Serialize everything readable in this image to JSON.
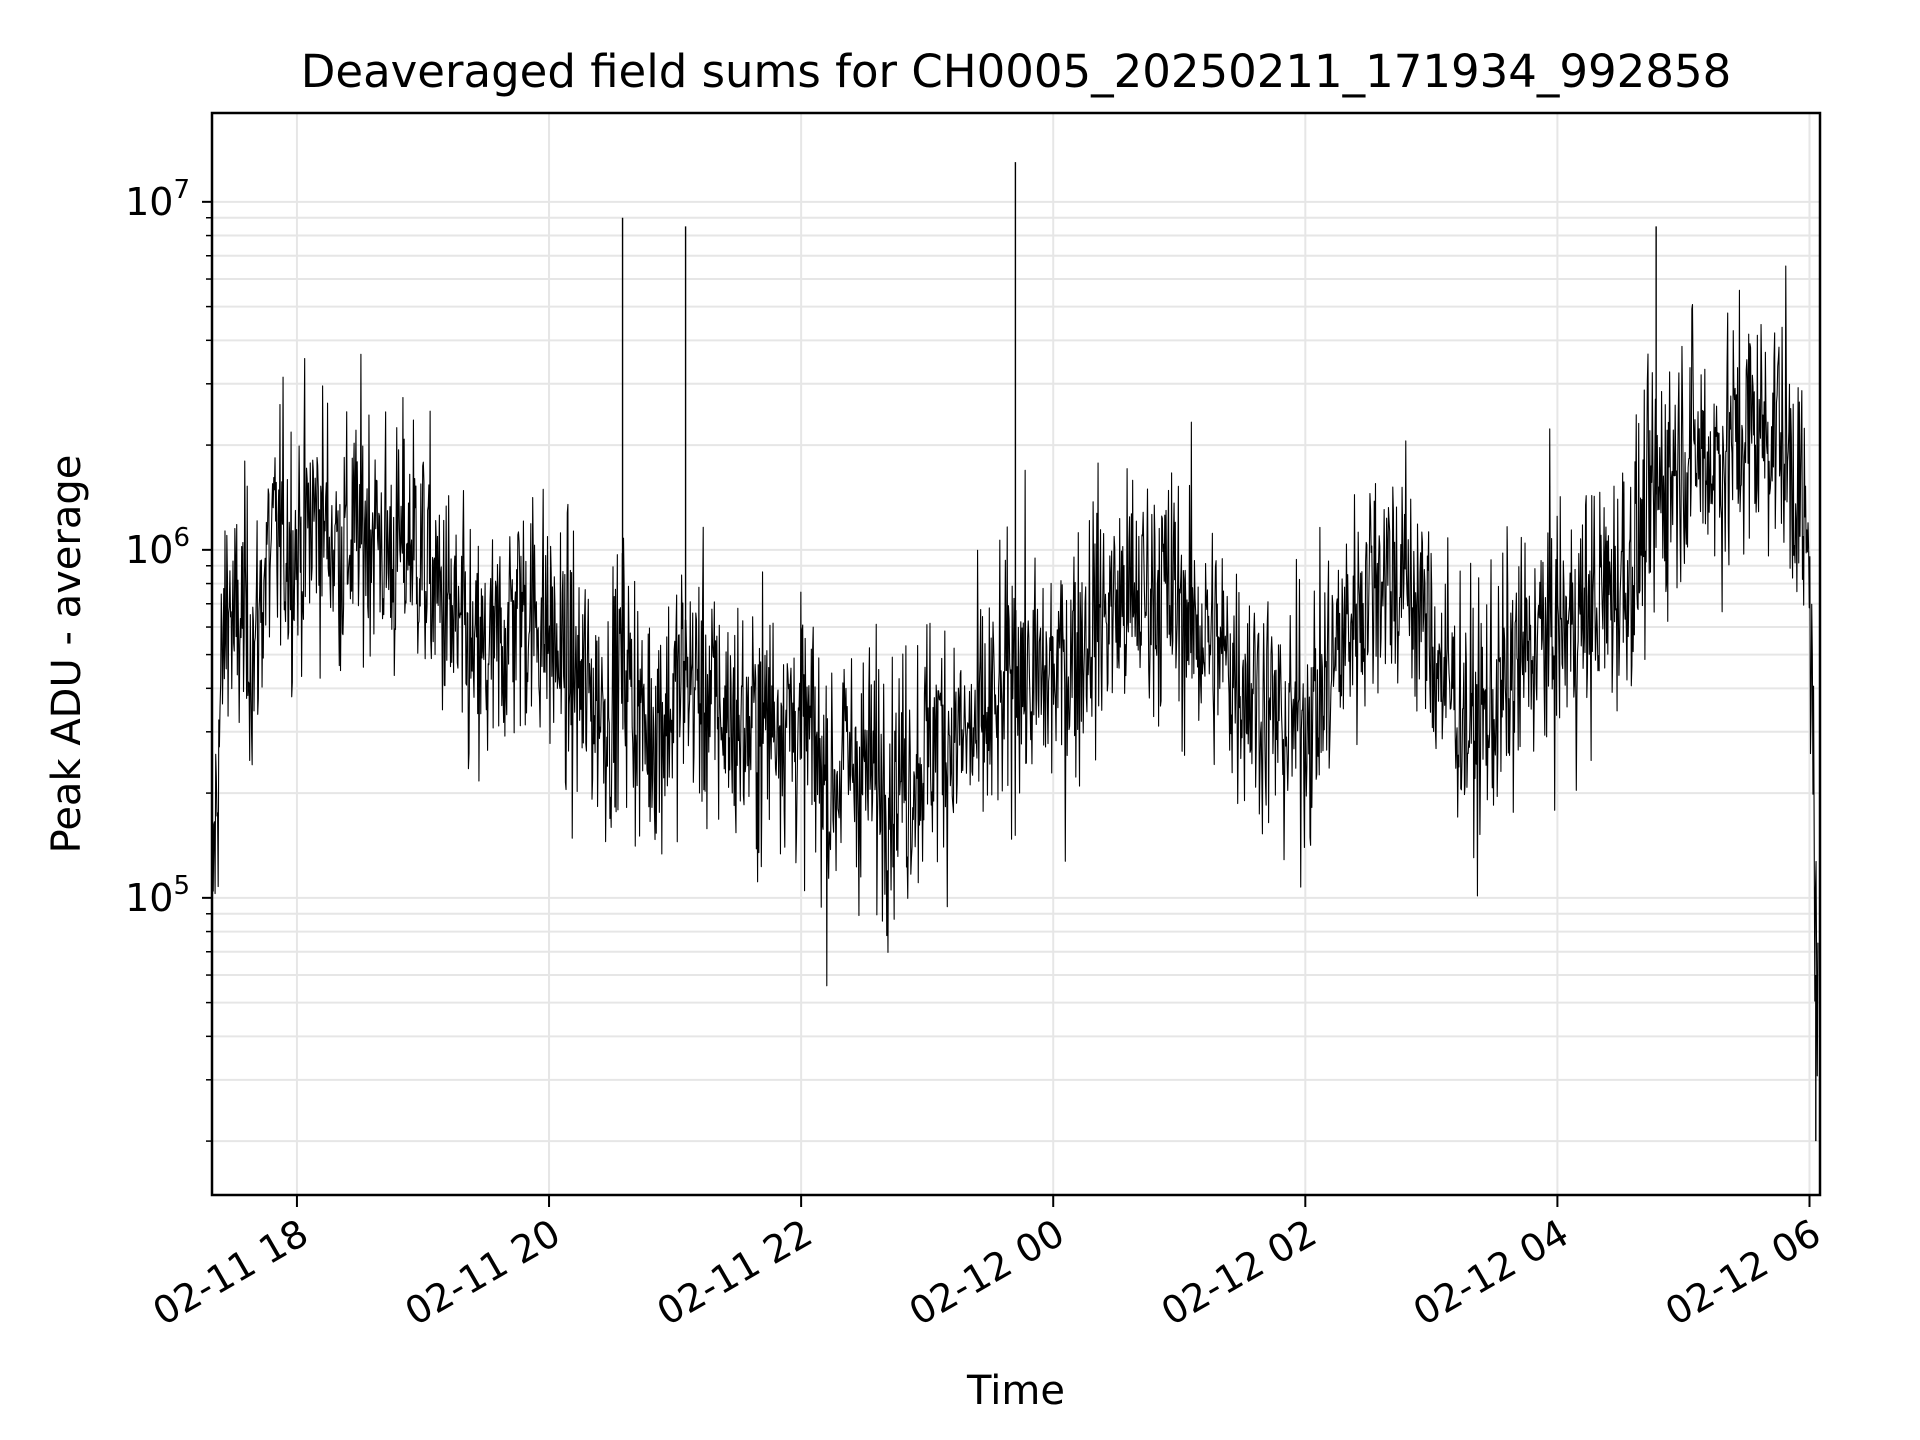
{
  "chart_data": {
    "type": "line",
    "title": "Deaveraged field sums for CH0005_20250211_171934_992858",
    "xlabel": "Time",
    "ylabel": "Peak ADU - average",
    "yscale": "log",
    "xlim": [
      "2025-02-11 17:19:34",
      "2025-02-12 06:05:00"
    ],
    "ylim": [
      14000,
      18000000
    ],
    "grid": true,
    "x_ticks": [
      {
        "value": "2025-02-11 18:00",
        "label": "02-11 18"
      },
      {
        "value": "2025-02-11 20:00",
        "label": "02-11 20"
      },
      {
        "value": "2025-02-11 22:00",
        "label": "02-11 22"
      },
      {
        "value": "2025-02-12 00:00",
        "label": "02-12 00"
      },
      {
        "value": "2025-02-12 02:00",
        "label": "02-12 02"
      },
      {
        "value": "2025-02-12 04:00",
        "label": "02-12 04"
      },
      {
        "value": "2025-02-12 06:00",
        "label": "02-12 06"
      }
    ],
    "y_ticks": [
      {
        "value": 100000,
        "base": "10",
        "exp": "5"
      },
      {
        "value": 1000000,
        "base": "10",
        "exp": "6"
      },
      {
        "value": 10000000,
        "base": "10",
        "exp": "7"
      }
    ],
    "series": [
      {
        "color": "#000000",
        "x": [
          "2025-02-11 17:19:34",
          "2025-02-11 17:21",
          "2025-02-11 17:24",
          "2025-02-11 17:27",
          "2025-02-11 17:30",
          "2025-02-11 17:35",
          "2025-02-11 17:40",
          "2025-02-11 17:45",
          "2025-02-11 17:52",
          "2025-02-11 18:00",
          "2025-02-11 18:10",
          "2025-02-11 18:20",
          "2025-02-11 18:35",
          "2025-02-11 18:45",
          "2025-02-11 18:55",
          "2025-02-11 19:05",
          "2025-02-11 19:15",
          "2025-02-11 19:25",
          "2025-02-11 19:35",
          "2025-02-11 19:45",
          "2025-02-11 19:55",
          "2025-02-11 20:05",
          "2025-02-11 20:15",
          "2025-02-11 20:30",
          "2025-02-11 20:35",
          "2025-02-11 20:45",
          "2025-02-11 20:58",
          "2025-02-11 21:05",
          "2025-02-11 21:20",
          "2025-02-11 21:35",
          "2025-02-11 21:50",
          "2025-02-11 22:05",
          "2025-02-11 22:14",
          "2025-02-11 22:20",
          "2025-02-11 22:40",
          "2025-02-11 22:52",
          "2025-02-11 23:05",
          "2025-02-11 23:20",
          "2025-02-11 23:35",
          "2025-02-11 23:43",
          "2025-02-11 23:50",
          "2025-02-12 00:05",
          "2025-02-12 00:20",
          "2025-02-12 00:35",
          "2025-02-12 00:50",
          "2025-02-12 01:05",
          "2025-02-12 01:20",
          "2025-02-12 01:35",
          "2025-02-12 01:50",
          "2025-02-12 02:05",
          "2025-02-12 02:20",
          "2025-02-12 02:35",
          "2025-02-12 02:50",
          "2025-02-12 03:05",
          "2025-02-12 03:20",
          "2025-02-12 03:35",
          "2025-02-12 03:50",
          "2025-02-12 04:05",
          "2025-02-12 04:20",
          "2025-02-12 04:35",
          "2025-02-12 04:48",
          "2025-02-12 05:00",
          "2025-02-12 05:15",
          "2025-02-12 05:30",
          "2025-02-12 05:45",
          "2025-02-12 05:55",
          "2025-02-12 06:00",
          "2025-02-12 06:02",
          "2025-02-12 06:03",
          "2025-02-12 06:04"
        ],
        "y": [
          100000,
          150000,
          400000,
          800000,
          550000,
          650000,
          500000,
          900000,
          1100000,
          1000000,
          1300000,
          1000000,
          1200000,
          950000,
          1100000,
          800000,
          600000,
          450000,
          500000,
          700000,
          650000,
          500000,
          400000,
          350000,
          500000,
          300000,
          350000,
          450000,
          350000,
          300000,
          350000,
          280000,
          200000,
          250000,
          220000,
          230000,
          300000,
          280000,
          350000,
          500000,
          400000,
          450000,
          650000,
          700000,
          800000,
          650000,
          500000,
          400000,
          300000,
          350000,
          600000,
          900000,
          800000,
          450000,
          300000,
          400000,
          550000,
          600000,
          700000,
          900000,
          1500000,
          2000000,
          1800000,
          2200000,
          2300000,
          1500000,
          800000,
          250000,
          60000,
          40000
        ]
      }
    ],
    "annotations": [
      {
        "x": "2025-02-11 20:35",
        "y": 9000000,
        "note": "spike"
      },
      {
        "x": "2025-02-11 21:05",
        "y": 8500000,
        "note": "spike"
      },
      {
        "x": "2025-02-11 23:42",
        "y": 13000000,
        "note": "spike"
      },
      {
        "x": "2025-02-12 04:47",
        "y": 8500000,
        "note": "spike"
      },
      {
        "x": "2025-02-12 06:03",
        "y": 20000,
        "note": "dip"
      }
    ]
  }
}
